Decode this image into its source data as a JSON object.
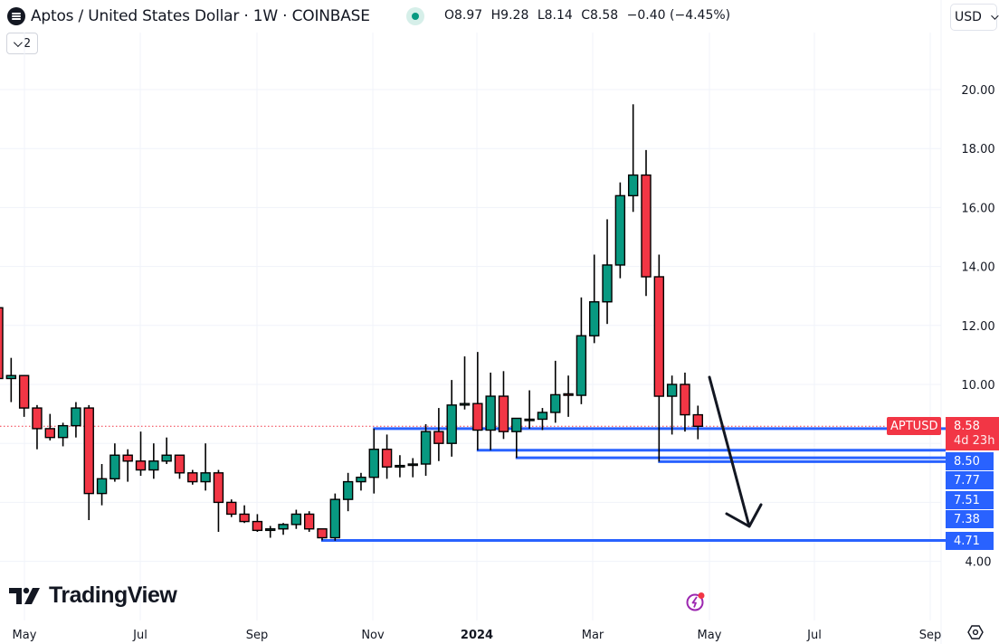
{
  "header": {
    "title": "Aptos / United States Dollar · 1W · COINBASE",
    "ohlc": {
      "open": "O8.97",
      "high": "H9.28",
      "low": "L8.14",
      "close": "C8.58",
      "change": "−0.40 (−4.45%)"
    },
    "indicators_toggle": "2",
    "currency": "USD"
  },
  "colors": {
    "up": "#089981",
    "down": "#f23645",
    "level": "#2962ff",
    "grid": "#f0f3fa"
  },
  "watermark": "TradingView",
  "price_tags": {
    "symbol": "APTUSD",
    "last": "8.58",
    "countdown": "4d 23h",
    "levels": [
      "8.50",
      "7.77",
      "7.51",
      "7.38",
      "4.71"
    ]
  },
  "chart_data": {
    "type": "candlestick",
    "title": "Aptos / United States Dollar · 1W · COINBASE",
    "xlabel": "",
    "ylabel": "USD",
    "y_ticks": [
      "4.00",
      "10.00",
      "12.00",
      "14.00",
      "16.00",
      "18.00",
      "20.00"
    ],
    "x_ticks": [
      "May",
      "Jul",
      "Sep",
      "Nov",
      "2024",
      "Mar",
      "May",
      "Jul",
      "Sep"
    ],
    "ylim": [
      3.0,
      21.0
    ],
    "grid": true,
    "last_price": 8.58,
    "horizontal_levels": [
      {
        "price": 8.5,
        "start_index": 29
      },
      {
        "price": 7.77,
        "start_index": 37
      },
      {
        "price": 7.51,
        "start_index": 40
      },
      {
        "price": 7.38,
        "start_index": 51
      },
      {
        "price": 4.71,
        "start_index": 25
      }
    ],
    "annotation": {
      "type": "arrow",
      "direction": "down",
      "from": [
        784,
        417
      ],
      "to": [
        828,
        582
      ]
    },
    "candles": [
      {
        "o": 12.6,
        "h": 12.6,
        "l": 10.2,
        "c": 10.2
      },
      {
        "o": 10.2,
        "h": 10.9,
        "l": 9.4,
        "c": 10.3
      },
      {
        "o": 10.3,
        "h": 10.3,
        "l": 8.9,
        "c": 9.2
      },
      {
        "o": 9.2,
        "h": 9.3,
        "l": 7.8,
        "c": 8.5
      },
      {
        "o": 8.5,
        "h": 9.0,
        "l": 8.1,
        "c": 8.2
      },
      {
        "o": 8.2,
        "h": 8.7,
        "l": 7.9,
        "c": 8.6
      },
      {
        "o": 8.6,
        "h": 9.4,
        "l": 8.2,
        "c": 9.2
      },
      {
        "o": 9.2,
        "h": 9.3,
        "l": 5.4,
        "c": 6.3
      },
      {
        "o": 6.3,
        "h": 7.3,
        "l": 5.9,
        "c": 6.8
      },
      {
        "o": 6.8,
        "h": 8.0,
        "l": 6.7,
        "c": 7.6
      },
      {
        "o": 7.6,
        "h": 7.8,
        "l": 6.7,
        "c": 7.4
      },
      {
        "o": 7.4,
        "h": 8.4,
        "l": 6.9,
        "c": 7.1
      },
      {
        "o": 7.1,
        "h": 8.0,
        "l": 6.8,
        "c": 7.4
      },
      {
        "o": 7.4,
        "h": 8.2,
        "l": 7.3,
        "c": 7.6
      },
      {
        "o": 7.6,
        "h": 7.6,
        "l": 6.8,
        "c": 7.0
      },
      {
        "o": 7.0,
        "h": 7.1,
        "l": 6.6,
        "c": 6.7
      },
      {
        "o": 6.7,
        "h": 8.0,
        "l": 6.4,
        "c": 7.0
      },
      {
        "o": 7.0,
        "h": 7.1,
        "l": 5.0,
        "c": 6.0
      },
      {
        "o": 6.0,
        "h": 6.1,
        "l": 5.5,
        "c": 5.6
      },
      {
        "o": 5.6,
        "h": 5.9,
        "l": 5.3,
        "c": 5.35
      },
      {
        "o": 5.35,
        "h": 5.6,
        "l": 5.0,
        "c": 5.05
      },
      {
        "o": 5.05,
        "h": 5.2,
        "l": 4.8,
        "c": 5.1
      },
      {
        "o": 5.1,
        "h": 5.3,
        "l": 4.9,
        "c": 5.25
      },
      {
        "o": 5.25,
        "h": 5.75,
        "l": 5.1,
        "c": 5.6
      },
      {
        "o": 5.6,
        "h": 5.7,
        "l": 5.0,
        "c": 5.1
      },
      {
        "o": 5.1,
        "h": 5.1,
        "l": 4.71,
        "c": 4.8
      },
      {
        "o": 4.8,
        "h": 6.3,
        "l": 4.7,
        "c": 6.1
      },
      {
        "o": 6.1,
        "h": 7.0,
        "l": 5.7,
        "c": 6.7
      },
      {
        "o": 6.7,
        "h": 7.0,
        "l": 6.4,
        "c": 6.85
      },
      {
        "o": 6.85,
        "h": 8.5,
        "l": 6.3,
        "c": 7.8
      },
      {
        "o": 7.8,
        "h": 8.3,
        "l": 6.8,
        "c": 7.2
      },
      {
        "o": 7.2,
        "h": 7.6,
        "l": 6.85,
        "c": 7.25
      },
      {
        "o": 7.27,
        "h": 7.5,
        "l": 6.85,
        "c": 7.3
      },
      {
        "o": 7.3,
        "h": 8.65,
        "l": 6.9,
        "c": 8.4
      },
      {
        "o": 8.4,
        "h": 9.2,
        "l": 7.4,
        "c": 8.0
      },
      {
        "o": 8.0,
        "h": 10.15,
        "l": 7.55,
        "c": 9.3
      },
      {
        "o": 9.3,
        "h": 10.95,
        "l": 9.15,
        "c": 9.35
      },
      {
        "o": 9.35,
        "h": 11.1,
        "l": 7.77,
        "c": 8.45
      },
      {
        "o": 8.45,
        "h": 10.4,
        "l": 7.77,
        "c": 9.6
      },
      {
        "o": 9.6,
        "h": 10.45,
        "l": 8.15,
        "c": 8.4
      },
      {
        "o": 8.4,
        "h": 8.85,
        "l": 7.51,
        "c": 8.85
      },
      {
        "o": 8.8,
        "h": 9.8,
        "l": 8.5,
        "c": 8.82
      },
      {
        "o": 8.82,
        "h": 9.2,
        "l": 8.45,
        "c": 9.05
      },
      {
        "o": 9.05,
        "h": 10.8,
        "l": 8.7,
        "c": 9.65
      },
      {
        "o": 9.68,
        "h": 10.3,
        "l": 8.9,
        "c": 9.63
      },
      {
        "o": 9.63,
        "h": 12.95,
        "l": 9.33,
        "c": 11.65
      },
      {
        "o": 11.65,
        "h": 14.4,
        "l": 11.4,
        "c": 12.8
      },
      {
        "o": 12.8,
        "h": 15.6,
        "l": 12.05,
        "c": 14.05
      },
      {
        "o": 14.05,
        "h": 16.85,
        "l": 13.6,
        "c": 16.4
      },
      {
        "o": 16.4,
        "h": 19.5,
        "l": 15.85,
        "c": 17.1
      },
      {
        "o": 17.1,
        "h": 17.95,
        "l": 13.0,
        "c": 13.65
      },
      {
        "o": 13.65,
        "h": 14.4,
        "l": 7.38,
        "c": 9.6
      },
      {
        "o": 9.6,
        "h": 10.3,
        "l": 8.3,
        "c": 10.0
      },
      {
        "o": 10.0,
        "h": 10.4,
        "l": 8.4,
        "c": 8.97
      },
      {
        "o": 8.97,
        "h": 9.28,
        "l": 8.14,
        "c": 8.58
      }
    ]
  }
}
